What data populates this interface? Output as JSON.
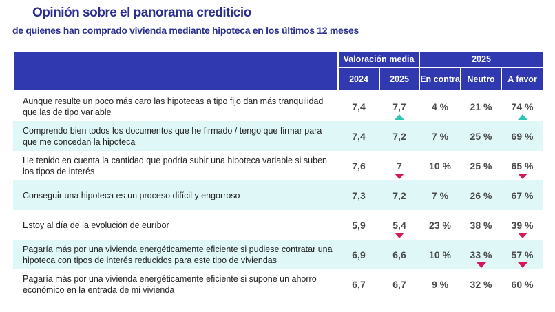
{
  "title": "Opinión sobre el panorama crediticio",
  "subtitle": "de quienes han comprado vivienda mediante hipoteca en los últimos 12 meses",
  "header": {
    "group1": "Valoración media",
    "group2": "2025",
    "cols": [
      "2024",
      "2025",
      "En contra",
      "Neutro",
      "A favor"
    ]
  },
  "colors": {
    "header": "#3039b0",
    "tint": "#e0f7f8",
    "up": "#2ec4b6",
    "down": "#d6175a"
  },
  "rows": [
    {
      "label": "Aunque resulte un poco más caro las hipotecas a tipo fijo dan más tranquilidad que las de tipo variable",
      "v2024": "7,4",
      "v2025": "7,7",
      "contra": "4 %",
      "neutro": "21 %",
      "favor": "74 %",
      "arrows": {
        "v2025": "up",
        "favor": "up"
      }
    },
    {
      "label": "Comprendo bien todos los documentos que he firmado / tengo que firmar para que me concedan la hipoteca",
      "v2024": "7,4",
      "v2025": "7,2",
      "contra": "7 %",
      "neutro": "25 %",
      "favor": "69 %",
      "arrows": {}
    },
    {
      "label": "He tenido en cuenta la cantidad que podría subir una hipoteca variable si suben los tipos de interés",
      "v2024": "7,6",
      "v2025": "7",
      "contra": "10 %",
      "neutro": "25 %",
      "favor": "65 %",
      "arrows": {
        "v2025": "down",
        "favor": "down"
      }
    },
    {
      "label": "Conseguir una hipoteca es un proceso difícil y engorroso",
      "v2024": "7,3",
      "v2025": "7,2",
      "contra": "7 %",
      "neutro": "26 %",
      "favor": "67 %",
      "arrows": {}
    },
    {
      "label": "Estoy al día de la evolución de euríbor",
      "v2024": "5,9",
      "v2025": "5,4",
      "contra": "23 %",
      "neutro": "38 %",
      "favor": "39 %",
      "arrows": {
        "v2025": "down",
        "favor": "down"
      }
    },
    {
      "label": "Pagaría más por una vivienda energéticamente eficiente si pudiese contratar una hipoteca con tipos de interés reducidos para este tipo de viviendas",
      "v2024": "6,9",
      "v2025": "6,6",
      "contra": "10 %",
      "neutro": "33 %",
      "favor": "57 %",
      "arrows": {
        "neutro": "down",
        "favor": "down"
      }
    },
    {
      "label": "Pagaría más por una vivienda energéticamente eficiente si supone un ahorro económico en la entrada de mi vivienda",
      "v2024": "6,7",
      "v2025": "6,7",
      "contra": "9 %",
      "neutro": "32 %",
      "favor": "60 %",
      "arrows": {}
    }
  ]
}
